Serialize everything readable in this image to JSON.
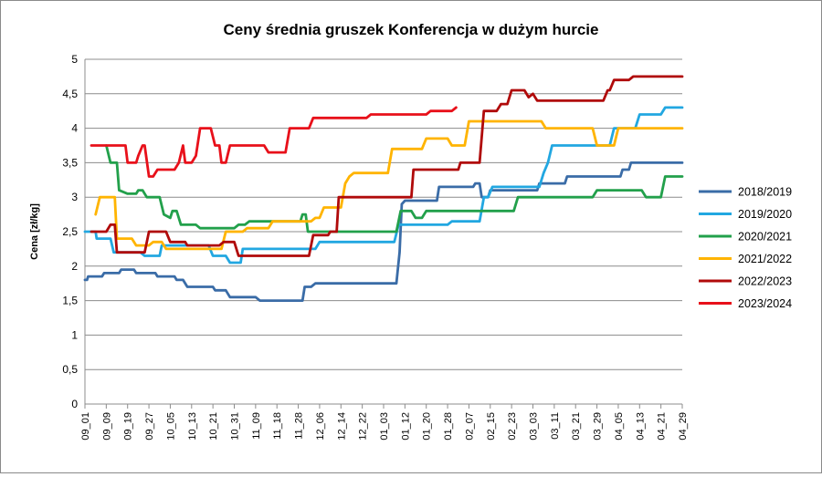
{
  "chart_data": {
    "type": "line",
    "title": "Ceny średnia gruszek Konferencja w dużym hurcie",
    "xlabel": "",
    "ylabel": "Cena [zł/kg]",
    "ylim": [
      0,
      5
    ],
    "yticks": [
      "0",
      "0,5",
      "1",
      "1,5",
      "2",
      "2,5",
      "3",
      "3,5",
      "4",
      "4,5",
      "5"
    ],
    "grid": "horizontal",
    "legend": "right",
    "categories": [
      "09_01",
      "09_09",
      "09_19",
      "09_27",
      "10_05",
      "10_13",
      "10_21",
      "10_31",
      "11_09",
      "11_18",
      "11_28",
      "12_06",
      "12_14",
      "12_22",
      "01_03",
      "01_12",
      "01_20",
      "01_28",
      "02_07",
      "02_15",
      "02_23",
      "03_03",
      "03_11",
      "03_21",
      "03_29",
      "04_05",
      "04_13",
      "04_21",
      "04_29"
    ],
    "series": [
      {
        "name": "2018/2019",
        "color": "#3A6CA7",
        "points": [
          [
            0,
            1.8
          ],
          [
            0.1,
            1.8
          ],
          [
            0.15,
            1.85
          ],
          [
            0.8,
            1.85
          ],
          [
            0.9,
            1.9
          ],
          [
            1.6,
            1.9
          ],
          [
            1.7,
            1.95
          ],
          [
            2.3,
            1.95
          ],
          [
            2.4,
            1.9
          ],
          [
            3.3,
            1.9
          ],
          [
            3.4,
            1.85
          ],
          [
            4.2,
            1.85
          ],
          [
            4.3,
            1.8
          ],
          [
            4.6,
            1.8
          ],
          [
            4.8,
            1.7
          ],
          [
            6.0,
            1.7
          ],
          [
            6.1,
            1.65
          ],
          [
            6.6,
            1.65
          ],
          [
            6.8,
            1.55
          ],
          [
            8.0,
            1.55
          ],
          [
            8.2,
            1.5
          ],
          [
            10.2,
            1.5
          ],
          [
            10.3,
            1.7
          ],
          [
            10.6,
            1.7
          ],
          [
            10.8,
            1.75
          ],
          [
            14.6,
            1.75
          ],
          [
            14.75,
            2.2
          ],
          [
            14.85,
            2.9
          ],
          [
            15.0,
            2.95
          ],
          [
            16.5,
            2.95
          ],
          [
            16.6,
            3.15
          ],
          [
            18.2,
            3.15
          ],
          [
            18.3,
            3.2
          ],
          [
            18.5,
            3.2
          ],
          [
            18.6,
            3.0
          ],
          [
            18.9,
            3.0
          ],
          [
            19.0,
            3.1
          ],
          [
            21.2,
            3.1
          ],
          [
            21.3,
            3.2
          ],
          [
            22.5,
            3.2
          ],
          [
            22.6,
            3.3
          ],
          [
            25.1,
            3.3
          ],
          [
            25.2,
            3.4
          ],
          [
            25.5,
            3.4
          ],
          [
            25.6,
            3.5
          ],
          [
            28,
            3.5
          ]
        ]
      },
      {
        "name": "2019/2020",
        "color": "#22A7E1",
        "points": [
          [
            0,
            2.5
          ],
          [
            0.5,
            2.5
          ],
          [
            0.55,
            2.4
          ],
          [
            1.2,
            2.4
          ],
          [
            1.35,
            2.2
          ],
          [
            2.6,
            2.2
          ],
          [
            2.8,
            2.15
          ],
          [
            3.5,
            2.15
          ],
          [
            3.6,
            2.3
          ],
          [
            5.8,
            2.3
          ],
          [
            6.0,
            2.15
          ],
          [
            6.6,
            2.15
          ],
          [
            6.8,
            2.05
          ],
          [
            7.3,
            2.05
          ],
          [
            7.4,
            2.25
          ],
          [
            10.8,
            2.25
          ],
          [
            11.0,
            2.35
          ],
          [
            14.5,
            2.35
          ],
          [
            14.7,
            2.6
          ],
          [
            17.0,
            2.6
          ],
          [
            17.2,
            2.65
          ],
          [
            18.5,
            2.65
          ],
          [
            18.7,
            3.0
          ],
          [
            18.9,
            3.0
          ],
          [
            19.1,
            3.15
          ],
          [
            21.3,
            3.15
          ],
          [
            21.5,
            3.35
          ],
          [
            21.7,
            3.5
          ],
          [
            21.9,
            3.75
          ],
          [
            24.6,
            3.75
          ],
          [
            24.8,
            4.0
          ],
          [
            25.8,
            4.0
          ],
          [
            26.0,
            4.2
          ],
          [
            27.0,
            4.2
          ],
          [
            27.2,
            4.3
          ],
          [
            28,
            4.3
          ]
        ]
      },
      {
        "name": "2020/2021",
        "color": "#22A04B",
        "points": [
          [
            1.0,
            3.75
          ],
          [
            1.2,
            3.5
          ],
          [
            1.5,
            3.5
          ],
          [
            1.6,
            3.1
          ],
          [
            2.0,
            3.05
          ],
          [
            2.4,
            3.05
          ],
          [
            2.5,
            3.1
          ],
          [
            2.7,
            3.1
          ],
          [
            2.9,
            3.0
          ],
          [
            3.5,
            3.0
          ],
          [
            3.7,
            2.75
          ],
          [
            4.0,
            2.7
          ],
          [
            4.1,
            2.8
          ],
          [
            4.3,
            2.8
          ],
          [
            4.5,
            2.6
          ],
          [
            5.2,
            2.6
          ],
          [
            5.4,
            2.55
          ],
          [
            7.0,
            2.55
          ],
          [
            7.2,
            2.6
          ],
          [
            7.5,
            2.6
          ],
          [
            7.7,
            2.65
          ],
          [
            10.1,
            2.65
          ],
          [
            10.2,
            2.75
          ],
          [
            10.35,
            2.75
          ],
          [
            10.45,
            2.5
          ],
          [
            14.6,
            2.5
          ],
          [
            14.8,
            2.8
          ],
          [
            15.3,
            2.8
          ],
          [
            15.5,
            2.7
          ],
          [
            15.8,
            2.7
          ],
          [
            16.0,
            2.8
          ],
          [
            20.1,
            2.8
          ],
          [
            20.3,
            3.0
          ],
          [
            23.8,
            3.0
          ],
          [
            24.0,
            3.1
          ],
          [
            26.1,
            3.1
          ],
          [
            26.3,
            3.0
          ],
          [
            27.0,
            3.0
          ],
          [
            27.2,
            3.3
          ],
          [
            28,
            3.3
          ]
        ]
      },
      {
        "name": "2021/2022",
        "color": "#FFB400",
        "points": [
          [
            0.5,
            2.75
          ],
          [
            0.7,
            3.0
          ],
          [
            1.4,
            3.0
          ],
          [
            1.5,
            2.4
          ],
          [
            2.2,
            2.4
          ],
          [
            2.4,
            2.3
          ],
          [
            3.0,
            2.3
          ],
          [
            3.2,
            2.35
          ],
          [
            3.6,
            2.35
          ],
          [
            3.8,
            2.25
          ],
          [
            6.4,
            2.25
          ],
          [
            6.6,
            2.5
          ],
          [
            7.4,
            2.5
          ],
          [
            7.6,
            2.55
          ],
          [
            8.6,
            2.55
          ],
          [
            8.8,
            2.65
          ],
          [
            10.6,
            2.65
          ],
          [
            10.8,
            2.7
          ],
          [
            11.0,
            2.7
          ],
          [
            11.2,
            2.85
          ],
          [
            12.0,
            2.85
          ],
          [
            12.2,
            3.2
          ],
          [
            12.4,
            3.3
          ],
          [
            12.6,
            3.35
          ],
          [
            14.2,
            3.35
          ],
          [
            14.4,
            3.7
          ],
          [
            15.8,
            3.7
          ],
          [
            16.0,
            3.85
          ],
          [
            17.0,
            3.85
          ],
          [
            17.2,
            3.75
          ],
          [
            17.8,
            3.75
          ],
          [
            18.0,
            4.1
          ],
          [
            21.4,
            4.1
          ],
          [
            21.6,
            4.0
          ],
          [
            23.8,
            4.0
          ],
          [
            24.0,
            3.75
          ],
          [
            24.8,
            3.75
          ],
          [
            25.0,
            4.0
          ],
          [
            28,
            4.0
          ]
        ]
      },
      {
        "name": "2022/2023",
        "color": "#B00A0A",
        "points": [
          [
            0.3,
            2.5
          ],
          [
            1.0,
            2.5
          ],
          [
            1.2,
            2.6
          ],
          [
            1.4,
            2.6
          ],
          [
            1.5,
            2.2
          ],
          [
            2.8,
            2.2
          ],
          [
            3.0,
            2.5
          ],
          [
            3.8,
            2.5
          ],
          [
            4.0,
            2.35
          ],
          [
            4.7,
            2.35
          ],
          [
            4.8,
            2.3
          ],
          [
            6.3,
            2.3
          ],
          [
            6.5,
            2.35
          ],
          [
            7.0,
            2.35
          ],
          [
            7.2,
            2.15
          ],
          [
            10.5,
            2.15
          ],
          [
            10.7,
            2.45
          ],
          [
            11.4,
            2.45
          ],
          [
            11.5,
            2.5
          ],
          [
            11.8,
            2.5
          ],
          [
            11.9,
            3.0
          ],
          [
            15.3,
            3.0
          ],
          [
            15.4,
            3.4
          ],
          [
            17.5,
            3.4
          ],
          [
            17.6,
            3.5
          ],
          [
            18.5,
            3.5
          ],
          [
            18.7,
            4.25
          ],
          [
            19.3,
            4.25
          ],
          [
            19.5,
            4.35
          ],
          [
            19.8,
            4.35
          ],
          [
            20.0,
            4.55
          ],
          [
            20.6,
            4.55
          ],
          [
            20.8,
            4.45
          ],
          [
            21.0,
            4.5
          ],
          [
            21.2,
            4.4
          ],
          [
            24.3,
            4.4
          ],
          [
            24.5,
            4.55
          ],
          [
            24.6,
            4.55
          ],
          [
            24.8,
            4.7
          ],
          [
            25.5,
            4.7
          ],
          [
            25.7,
            4.75
          ],
          [
            28,
            4.75
          ]
        ]
      },
      {
        "name": "2023/2024",
        "color": "#E8101A",
        "points": [
          [
            0.3,
            3.75
          ],
          [
            1.9,
            3.75
          ],
          [
            2.0,
            3.5
          ],
          [
            2.4,
            3.5
          ],
          [
            2.5,
            3.6
          ],
          [
            2.7,
            3.75
          ],
          [
            2.8,
            3.75
          ],
          [
            3.0,
            3.3
          ],
          [
            3.2,
            3.3
          ],
          [
            3.4,
            3.4
          ],
          [
            4.2,
            3.4
          ],
          [
            4.4,
            3.5
          ],
          [
            4.6,
            3.75
          ],
          [
            4.7,
            3.5
          ],
          [
            5.0,
            3.5
          ],
          [
            5.2,
            3.6
          ],
          [
            5.4,
            4.0
          ],
          [
            5.9,
            4.0
          ],
          [
            6.1,
            3.75
          ],
          [
            6.3,
            3.75
          ],
          [
            6.4,
            3.5
          ],
          [
            6.6,
            3.5
          ],
          [
            6.8,
            3.75
          ],
          [
            8.4,
            3.75
          ],
          [
            8.6,
            3.65
          ],
          [
            9.4,
            3.65
          ],
          [
            9.6,
            4.0
          ],
          [
            10.5,
            4.0
          ],
          [
            10.7,
            4.15
          ],
          [
            13.2,
            4.15
          ],
          [
            13.4,
            4.2
          ],
          [
            16.0,
            4.2
          ],
          [
            16.2,
            4.25
          ],
          [
            17.2,
            4.25
          ],
          [
            17.4,
            4.3
          ]
        ]
      }
    ]
  }
}
